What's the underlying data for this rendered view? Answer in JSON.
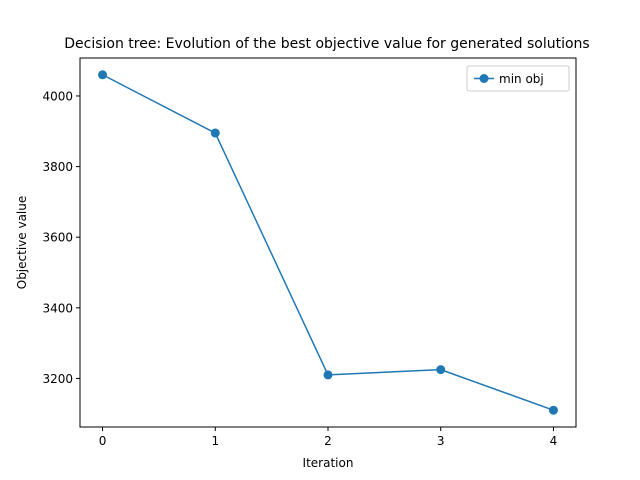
{
  "chart_data": {
    "type": "line",
    "title": "Decision tree: Evolution of the best objective value for generated solutions",
    "xlabel": "Iteration",
    "ylabel": "Objective value",
    "x": [
      0,
      1,
      2,
      3,
      4
    ],
    "series": [
      {
        "name": "min obj",
        "values": [
          4060,
          3895,
          3210,
          3225,
          3110
        ],
        "color": "#1f77b4"
      }
    ],
    "xlim": [
      -0.2,
      4.2
    ],
    "ylim": [
      3062.5,
      4107.5
    ],
    "xticks": [
      0,
      1,
      2,
      3,
      4
    ],
    "yticks": [
      3200,
      3400,
      3600,
      3800,
      4000
    ],
    "xtick_labels": [
      "0",
      "1",
      "2",
      "3",
      "4"
    ],
    "ytick_labels": [
      "3200",
      "3400",
      "3600",
      "3800",
      "4000"
    ],
    "grid": false,
    "legend_position": "upper right",
    "marker": "circle"
  }
}
